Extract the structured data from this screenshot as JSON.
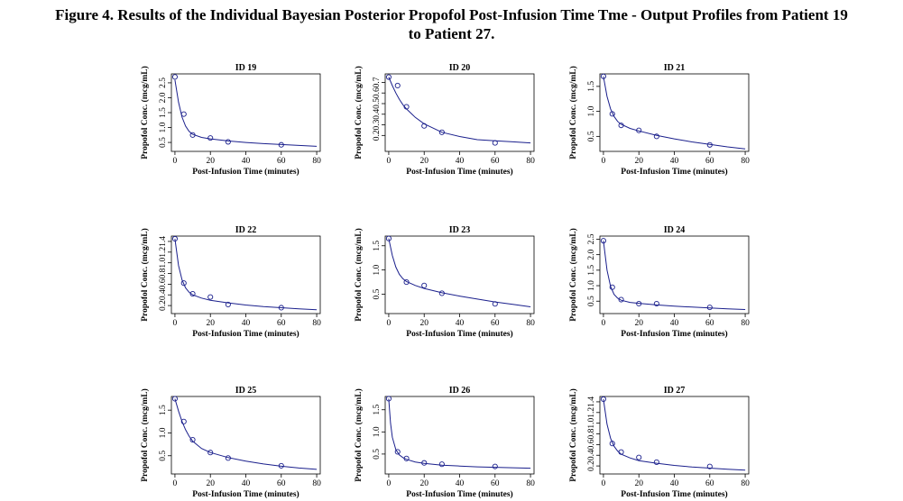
{
  "figure": {
    "title_line1": "Figure 4. Results of the Individual Bayesian Posterior Propofol Post-Infusion Time Tme - Output Profiles from Patient 19",
    "title_line2": "to Patient 27."
  },
  "colors": {
    "curve": "#1a1f8c",
    "points": "#1a1f8c",
    "axis": "#000000"
  },
  "chart_data": [
    {
      "type": "scatter",
      "title": "ID 19",
      "xlabel": "Post-Infusion Time (minutes)",
      "ylabel": "Propofol Conc. (mcg/mL)",
      "xlim": [
        -2,
        82
      ],
      "ylim": [
        0.2,
        2.8
      ],
      "xticks": [
        "0",
        "20",
        "40",
        "60",
        "80"
      ],
      "yticks": [
        "0.5",
        "1.0",
        "1.5",
        "2.0",
        "2.5"
      ],
      "yticks_values": [
        0.5,
        1.0,
        1.5,
        2.0,
        2.5
      ],
      "observed": {
        "x": [
          0,
          5,
          10,
          20,
          30,
          60
        ],
        "y": [
          2.7,
          1.45,
          0.75,
          0.65,
          0.52,
          0.42
        ]
      },
      "fitted": {
        "x": [
          0,
          2,
          4,
          6,
          8,
          10,
          15,
          20,
          30,
          40,
          50,
          60,
          70,
          80
        ],
        "y": [
          2.6,
          1.85,
          1.35,
          1.05,
          0.87,
          0.77,
          0.67,
          0.62,
          0.55,
          0.5,
          0.46,
          0.43,
          0.4,
          0.37
        ]
      }
    },
    {
      "type": "scatter",
      "title": "ID 20",
      "xlabel": "Post-Infusion Time (minutes)",
      "ylabel": "Propofol Conc. (mcg/mL)",
      "xlim": [
        -2,
        82
      ],
      "ylim": [
        0.05,
        0.78
      ],
      "xticks": [
        "0",
        "20",
        "40",
        "60",
        "80"
      ],
      "yticks": [
        "0.2",
        "0.3",
        "0.4",
        "0.5",
        "0.6",
        "0.7"
      ],
      "yticks_values": [
        0.2,
        0.3,
        0.4,
        0.5,
        0.6,
        0.7
      ],
      "observed": {
        "x": [
          0,
          5,
          10,
          20,
          30,
          60
        ],
        "y": [
          0.75,
          0.67,
          0.47,
          0.29,
          0.23,
          0.13
        ]
      },
      "fitted": {
        "x": [
          0,
          2,
          4,
          6,
          8,
          10,
          15,
          20,
          30,
          40,
          50,
          60,
          70,
          80
        ],
        "y": [
          0.75,
          0.67,
          0.6,
          0.54,
          0.49,
          0.45,
          0.37,
          0.31,
          0.23,
          0.19,
          0.16,
          0.15,
          0.14,
          0.13
        ]
      }
    },
    {
      "type": "scatter",
      "title": "ID 21",
      "xlabel": "Post-Infusion Time (minutes)",
      "ylabel": "Propofol Conc. (mcg/mL)",
      "xlim": [
        -2,
        82
      ],
      "ylim": [
        0.2,
        1.75
      ],
      "xticks": [
        "0",
        "20",
        "40",
        "60",
        "80"
      ],
      "yticks": [
        "0.5",
        "1.0",
        "1.5"
      ],
      "yticks_values": [
        0.5,
        1.0,
        1.5
      ],
      "observed": {
        "x": [
          0,
          5,
          10,
          20,
          30,
          60
        ],
        "y": [
          1.7,
          0.95,
          0.72,
          0.62,
          0.5,
          0.33
        ]
      },
      "fitted": {
        "x": [
          0,
          2,
          4,
          6,
          8,
          10,
          15,
          20,
          30,
          40,
          50,
          60,
          70,
          80
        ],
        "y": [
          1.7,
          1.3,
          1.05,
          0.9,
          0.8,
          0.74,
          0.66,
          0.61,
          0.52,
          0.45,
          0.39,
          0.34,
          0.29,
          0.25
        ]
      }
    },
    {
      "type": "scatter",
      "title": "ID 22",
      "xlabel": "Post-Infusion Time (minutes)",
      "ylabel": "Propofol Conc. (mcg/mL)",
      "xlim": [
        -2,
        82
      ],
      "ylim": [
        0.05,
        1.5
      ],
      "xticks": [
        "0",
        "20",
        "40",
        "60",
        "80"
      ],
      "yticks": [
        "0.2",
        "0.4",
        "0.6",
        "0.8",
        "1.0",
        "1.2",
        "1.4"
      ],
      "yticks_values": [
        0.2,
        0.4,
        0.6,
        0.8,
        1.0,
        1.2,
        1.4
      ],
      "observed": {
        "x": [
          0,
          5,
          10,
          20,
          30,
          60
        ],
        "y": [
          1.45,
          0.62,
          0.42,
          0.36,
          0.22,
          0.16
        ]
      },
      "fitted": {
        "x": [
          0,
          2,
          4,
          6,
          8,
          10,
          15,
          20,
          30,
          40,
          50,
          60,
          70,
          80
        ],
        "y": [
          1.45,
          0.95,
          0.68,
          0.53,
          0.45,
          0.4,
          0.34,
          0.3,
          0.25,
          0.21,
          0.18,
          0.16,
          0.14,
          0.12
        ]
      }
    },
    {
      "type": "scatter",
      "title": "ID 23",
      "xlabel": "Post-Infusion Time (minutes)",
      "ylabel": "Propofol Conc. (mcg/mL)",
      "xlim": [
        -2,
        82
      ],
      "ylim": [
        0.1,
        1.7
      ],
      "xticks": [
        "0",
        "20",
        "40",
        "60",
        "80"
      ],
      "yticks": [
        "0.5",
        "1.0",
        "1.5"
      ],
      "yticks_values": [
        0.5,
        1.0,
        1.5
      ],
      "observed": {
        "x": [
          0,
          10,
          20,
          30,
          60
        ],
        "y": [
          1.65,
          0.75,
          0.68,
          0.52,
          0.3
        ]
      },
      "fitted": {
        "x": [
          0,
          2,
          4,
          6,
          8,
          10,
          15,
          20,
          30,
          40,
          50,
          60,
          70,
          80
        ],
        "y": [
          1.65,
          1.3,
          1.06,
          0.91,
          0.82,
          0.76,
          0.68,
          0.62,
          0.53,
          0.46,
          0.4,
          0.34,
          0.29,
          0.24
        ]
      }
    },
    {
      "type": "scatter",
      "title": "ID 24",
      "xlabel": "Post-Infusion Time (minutes)",
      "ylabel": "Propofol Conc. (mcg/mL)",
      "xlim": [
        -2,
        82
      ],
      "ylim": [
        0.1,
        2.6
      ],
      "xticks": [
        "0",
        "20",
        "40",
        "60",
        "80"
      ],
      "yticks": [
        "0.5",
        "1.0",
        "1.5",
        "2.0",
        "2.5"
      ],
      "yticks_values": [
        0.5,
        1.0,
        1.5,
        2.0,
        2.5
      ],
      "observed": {
        "x": [
          0,
          5,
          10,
          20,
          30,
          60
        ],
        "y": [
          2.45,
          0.95,
          0.55,
          0.42,
          0.42,
          0.3
        ]
      },
      "fitted": {
        "x": [
          0,
          2,
          4,
          6,
          8,
          10,
          15,
          20,
          30,
          40,
          50,
          60,
          70,
          80
        ],
        "y": [
          2.45,
          1.5,
          0.98,
          0.72,
          0.6,
          0.53,
          0.46,
          0.43,
          0.38,
          0.34,
          0.31,
          0.28,
          0.25,
          0.23
        ]
      }
    },
    {
      "type": "scatter",
      "title": "ID 25",
      "xlabel": "Post-Infusion Time (minutes)",
      "ylabel": "Propofol Conc. (mcg/mL)",
      "xlim": [
        -2,
        82
      ],
      "ylim": [
        0.1,
        1.8
      ],
      "xticks": [
        "0",
        "20",
        "40",
        "60",
        "80"
      ],
      "yticks": [
        "0.5",
        "1.0",
        "1.5"
      ],
      "yticks_values": [
        0.5,
        1.0,
        1.5
      ],
      "observed": {
        "x": [
          0,
          5,
          10,
          20,
          30,
          60
        ],
        "y": [
          1.75,
          1.25,
          0.85,
          0.57,
          0.45,
          0.28
        ]
      },
      "fitted": {
        "x": [
          0,
          2,
          4,
          6,
          8,
          10,
          15,
          20,
          30,
          40,
          50,
          60,
          70,
          80
        ],
        "y": [
          1.75,
          1.48,
          1.25,
          1.07,
          0.93,
          0.82,
          0.66,
          0.57,
          0.46,
          0.38,
          0.32,
          0.27,
          0.23,
          0.2
        ]
      }
    },
    {
      "type": "scatter",
      "title": "ID 26",
      "xlabel": "Post-Infusion Time (minutes)",
      "ylabel": "Propofol Conc. (mcg/mL)",
      "xlim": [
        -2,
        82
      ],
      "ylim": [
        0.05,
        1.8
      ],
      "xticks": [
        "0",
        "20",
        "40",
        "60",
        "80"
      ],
      "yticks": [
        "0.5",
        "1.0",
        "1.5"
      ],
      "yticks_values": [
        0.5,
        1.0,
        1.5
      ],
      "observed": {
        "x": [
          0,
          5,
          10,
          20,
          30,
          60
        ],
        "y": [
          1.75,
          0.55,
          0.4,
          0.3,
          0.27,
          0.22
        ]
      },
      "fitted": {
        "x": [
          0,
          1,
          2,
          4,
          6,
          8,
          10,
          15,
          20,
          30,
          40,
          50,
          60,
          70,
          80
        ],
        "y": [
          1.75,
          1.2,
          0.88,
          0.6,
          0.48,
          0.42,
          0.38,
          0.32,
          0.29,
          0.25,
          0.23,
          0.21,
          0.2,
          0.19,
          0.18
        ]
      }
    },
    {
      "type": "scatter",
      "title": "ID 27",
      "xlabel": "Post-Infusion Time (minutes)",
      "ylabel": "Propofol Conc. (mcg/mL)",
      "xlim": [
        -2,
        82
      ],
      "ylim": [
        0.05,
        1.5
      ],
      "xticks": [
        "0",
        "20",
        "40",
        "60",
        "80"
      ],
      "yticks": [
        "0.2",
        "0.4",
        "0.6",
        "0.8",
        "1.0",
        "1.2",
        "1.4"
      ],
      "yticks_values": [
        0.2,
        0.4,
        0.6,
        0.8,
        1.0,
        1.2,
        1.4
      ],
      "observed": {
        "x": [
          0,
          5,
          10,
          20,
          30,
          60
        ],
        "y": [
          1.45,
          0.62,
          0.46,
          0.36,
          0.27,
          0.19
        ]
      },
      "fitted": {
        "x": [
          0,
          2,
          4,
          6,
          8,
          10,
          15,
          20,
          30,
          40,
          50,
          60,
          70,
          80
        ],
        "y": [
          1.45,
          0.98,
          0.72,
          0.57,
          0.48,
          0.42,
          0.35,
          0.3,
          0.25,
          0.21,
          0.18,
          0.16,
          0.14,
          0.12
        ]
      }
    }
  ]
}
